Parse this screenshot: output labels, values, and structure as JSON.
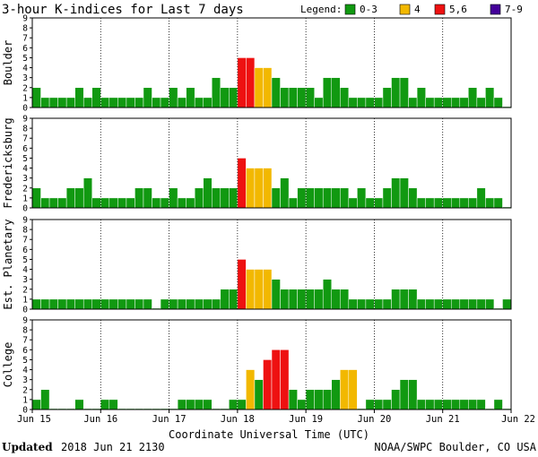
{
  "title": "3-hour K-indices for Last 7 days",
  "legend": {
    "label": "Legend:",
    "items": [
      {
        "label": "0-3",
        "color": "#119911"
      },
      {
        "label": "4",
        "color": "#f2b800"
      },
      {
        "label": "5,6",
        "color": "#ee1111"
      },
      {
        "label": "7-9",
        "color": "#440099"
      }
    ]
  },
  "footer": {
    "updated_label": "Updated",
    "updated_value": "2018 Jun 21 2130",
    "credit": "NOAA/SWPC Boulder, CO USA"
  },
  "chart_data": {
    "type": "bar",
    "xlabel": "Coordinate Universal Time (UTC)",
    "x_ticks": [
      "Jun 15",
      "Jun 16",
      "Jun 17",
      "Jun 18",
      "Jun 19",
      "Jun 20",
      "Jun 21",
      "Jun 22"
    ],
    "y_ticks": [
      "0",
      "1",
      "2",
      "3",
      "4",
      "5",
      "6",
      "7",
      "8",
      "9"
    ],
    "ylim": [
      0,
      9
    ],
    "bars_per_day": 8,
    "panels": [
      {
        "name": "Boulder",
        "values": [
          2,
          1,
          1,
          1,
          1,
          2,
          1,
          2,
          1,
          1,
          1,
          1,
          1,
          2,
          1,
          1,
          2,
          1,
          2,
          1,
          1,
          3,
          2,
          2,
          5,
          5,
          4,
          4,
          3,
          2,
          2,
          2,
          2,
          1,
          3,
          3,
          2,
          1,
          1,
          1,
          1,
          2,
          3,
          3,
          1,
          2,
          1,
          1,
          1,
          1,
          1,
          2,
          1,
          2,
          1,
          0
        ]
      },
      {
        "name": "Fredericksburg",
        "values": [
          2,
          1,
          1,
          1,
          2,
          2,
          3,
          1,
          1,
          1,
          1,
          1,
          2,
          2,
          1,
          1,
          2,
          1,
          1,
          2,
          3,
          2,
          2,
          2,
          5,
          4,
          4,
          4,
          2,
          3,
          1,
          2,
          2,
          2,
          2,
          2,
          2,
          1,
          2,
          1,
          1,
          2,
          3,
          3,
          2,
          1,
          1,
          1,
          1,
          1,
          1,
          1,
          2,
          1,
          1,
          0
        ]
      },
      {
        "name": "Est. Planetary",
        "values": [
          1,
          1,
          1,
          1,
          1,
          1,
          1,
          1,
          1,
          1,
          1,
          1,
          1,
          1,
          0,
          1,
          1,
          1,
          1,
          1,
          1,
          1,
          2,
          2,
          5,
          4,
          4,
          4,
          3,
          2,
          2,
          2,
          2,
          2,
          3,
          2,
          2,
          1,
          1,
          1,
          1,
          1,
          2,
          2,
          2,
          1,
          1,
          1,
          1,
          1,
          1,
          1,
          1,
          1,
          0,
          1
        ]
      },
      {
        "name": "College",
        "values": [
          1,
          2,
          0,
          0,
          0,
          1,
          0,
          0,
          1,
          1,
          0,
          0,
          0,
          0,
          0,
          0,
          0,
          1,
          1,
          1,
          1,
          0,
          0,
          1,
          1,
          4,
          3,
          5,
          6,
          6,
          2,
          1,
          2,
          2,
          2,
          3,
          4,
          4,
          0,
          1,
          1,
          1,
          2,
          3,
          3,
          1,
          1,
          1,
          1,
          1,
          1,
          1,
          1,
          0,
          1,
          0
        ]
      }
    ]
  }
}
